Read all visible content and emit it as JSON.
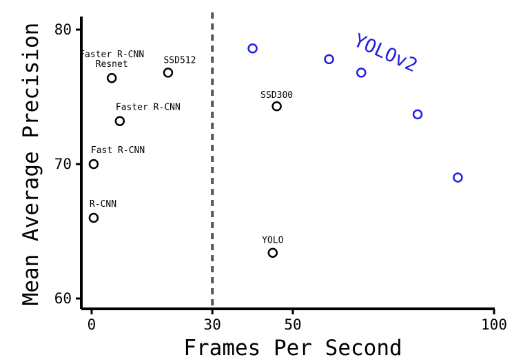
{
  "chart_data": {
    "type": "scatter",
    "xlabel": "Frames Per Second",
    "ylabel": "Mean Average Precision",
    "xlim": [
      -2,
      101
    ],
    "ylim": [
      59,
      80.8
    ],
    "x_ticks": [
      0,
      30,
      50,
      100
    ],
    "x_tick_labels": [
      "0",
      "30",
      "50",
      "100"
    ],
    "y_ticks": [
      60,
      70,
      80
    ],
    "y_tick_labels": [
      "60",
      "70",
      "80"
    ],
    "grid": false,
    "reference_line": {
      "x": 30,
      "style": "dashed",
      "color": "#555555"
    },
    "series": [
      {
        "color": "#000000",
        "points": [
          {
            "x": 0.5,
            "y": 66.0,
            "label": "R-CNN"
          },
          {
            "x": 0.5,
            "y": 70.0,
            "label": "Fast R-CNN"
          },
          {
            "x": 7,
            "y": 73.2,
            "label": "Faster R-CNN"
          },
          {
            "x": 5,
            "y": 76.4,
            "label": [
              "Faster R-CNN",
              "Resnet"
            ]
          },
          {
            "x": 19,
            "y": 76.8,
            "label": "SSD512"
          },
          {
            "x": 46,
            "y": 74.3,
            "label": "SSD300"
          },
          {
            "x": 45,
            "y": 63.4,
            "label": "YOLO"
          }
        ]
      },
      {
        "name": "YOLOv2",
        "color": "#1f1fe0",
        "points": [
          {
            "x": 40,
            "y": 78.6
          },
          {
            "x": 59,
            "y": 77.8
          },
          {
            "x": 67,
            "y": 76.8
          },
          {
            "x": 81,
            "y": 73.7
          },
          {
            "x": 91,
            "y": 69.0
          }
        ]
      }
    ]
  }
}
